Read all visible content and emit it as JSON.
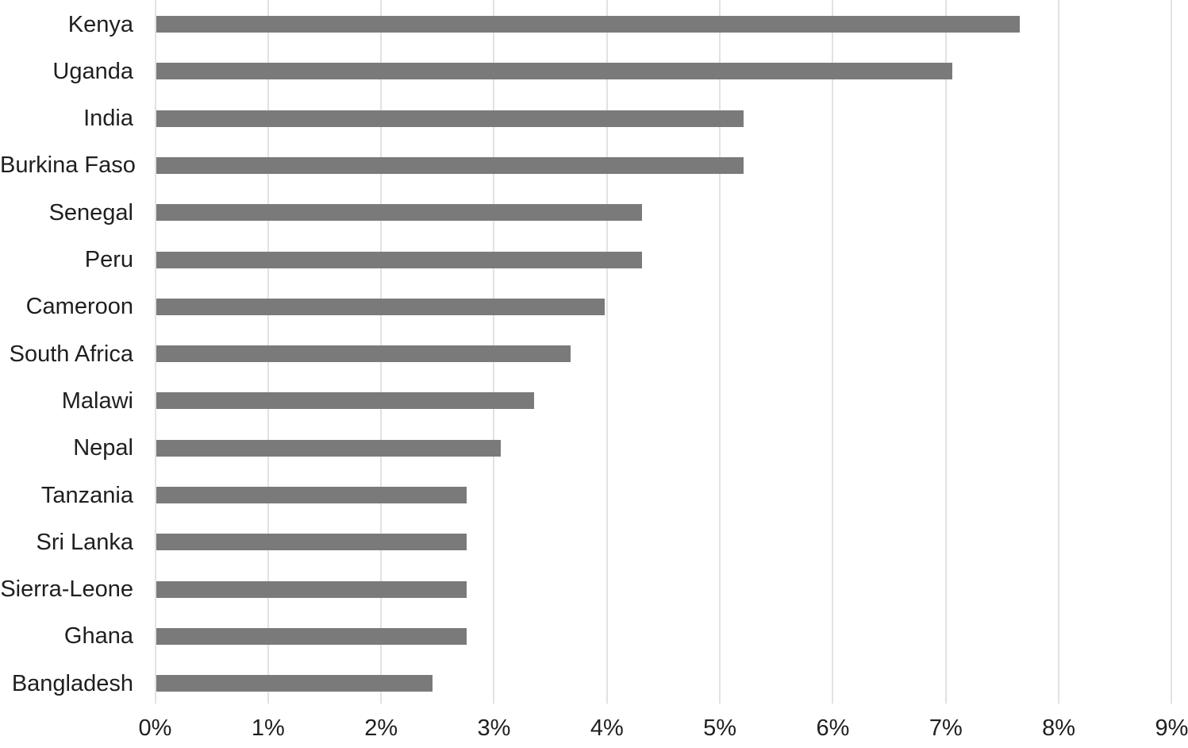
{
  "chart_data": {
    "type": "bar",
    "orientation": "horizontal",
    "title": "",
    "xlabel": "",
    "ylabel": "",
    "xlim": [
      0,
      9
    ],
    "x_tick_values": [
      0,
      1,
      2,
      3,
      4,
      5,
      6,
      7,
      8,
      9
    ],
    "x_tick_labels": [
      "0%",
      "1%",
      "2%",
      "3%",
      "4%",
      "5%",
      "6%",
      "7%",
      "8%",
      "9%"
    ],
    "categories": [
      "Kenya",
      "Uganda",
      "India",
      "Burkina Faso",
      "Senegal",
      "Peru",
      "Cameroon",
      "South Africa",
      "Malawi",
      "Nepal",
      "Tanzania",
      "Sri Lanka",
      "Sierra-Leone",
      "Ghana",
      "Bangladesh"
    ],
    "values": [
      7.65,
      7.05,
      5.2,
      5.2,
      4.3,
      4.3,
      3.97,
      3.67,
      3.35,
      3.05,
      2.75,
      2.75,
      2.75,
      2.75,
      2.45
    ],
    "value_unit": "%",
    "grid": true,
    "legend": false,
    "colors": {
      "bar": "#7a7a7a",
      "gridline": "#e2e2e2",
      "text": "#1f1f1f",
      "background": "#ffffff"
    }
  }
}
